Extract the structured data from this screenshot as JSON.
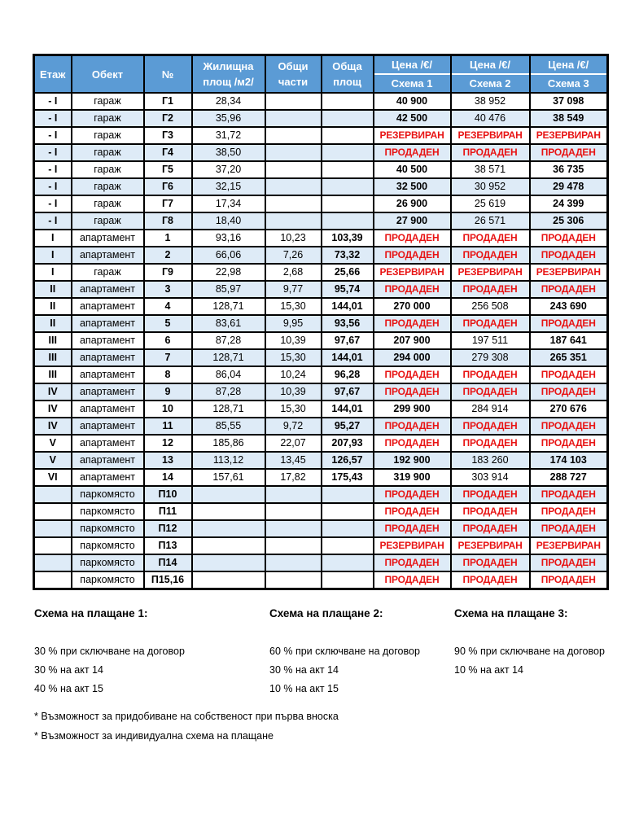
{
  "colors": {
    "header_bg": "#5B9BD5",
    "header_text": "#FFFFFF",
    "stripe_bg": "#DEEBF7",
    "status_red": "#E81414",
    "border": "#000000"
  },
  "status_values": [
    "ПРОДАДЕН",
    "РЕЗЕРВИРАН"
  ],
  "table": {
    "header": {
      "cols": [
        {
          "lines": [
            "Етаж"
          ]
        },
        {
          "lines": [
            "Обект"
          ]
        },
        {
          "lines": [
            "№"
          ]
        },
        {
          "lines": [
            "Жилищна",
            "площ /м2/"
          ]
        },
        {
          "lines": [
            "Общи",
            "части"
          ]
        },
        {
          "lines": [
            "Обща",
            "площ"
          ]
        },
        {
          "split": true,
          "lines": [
            "Цена /€/",
            "Схема 1"
          ]
        },
        {
          "split": true,
          "lines": [
            "Цена /€/",
            "Схема 2"
          ]
        },
        {
          "split": true,
          "lines": [
            "Цена /€/",
            "Схема 3"
          ]
        }
      ]
    },
    "rows": [
      {
        "cells": [
          "- I",
          "гараж",
          "Г1",
          "28,34",
          "",
          "",
          "40 900",
          "38 952",
          "37 098"
        ]
      },
      {
        "cells": [
          "- I",
          "гараж",
          "Г2",
          "35,96",
          "",
          "",
          "42 500",
          "40 476",
          "38 549"
        ]
      },
      {
        "cells": [
          "- I",
          "гараж",
          "Г3",
          "31,72",
          "",
          "",
          "РЕЗЕРВИРАН",
          "РЕЗЕРВИРАН",
          "РЕЗЕРВИРАН"
        ]
      },
      {
        "cells": [
          "- I",
          "гараж",
          "Г4",
          "38,50",
          "",
          "",
          "ПРОДАДЕН",
          "ПРОДАДЕН",
          "ПРОДАДЕН"
        ]
      },
      {
        "cells": [
          "- I",
          "гараж",
          "Г5",
          "37,20",
          "",
          "",
          "40 500",
          "38 571",
          "36 735"
        ]
      },
      {
        "cells": [
          "- I",
          "гараж",
          "Г6",
          "32,15",
          "",
          "",
          "32 500",
          "30 952",
          "29 478"
        ]
      },
      {
        "cells": [
          "- I",
          "гараж",
          "Г7",
          "17,34",
          "",
          "",
          "26 900",
          "25 619",
          "24 399"
        ]
      },
      {
        "cells": [
          "- I",
          "гараж",
          "Г8",
          "18,40",
          "",
          "",
          "27 900",
          "26 571",
          "25 306"
        ]
      },
      {
        "cells": [
          "I",
          "апартамент",
          "1",
          "93,16",
          "10,23",
          "103,39",
          "ПРОДАДЕН",
          "ПРОДАДЕН",
          "ПРОДАДЕН"
        ]
      },
      {
        "cells": [
          "I",
          "апартамент",
          "2",
          "66,06",
          "7,26",
          "73,32",
          "ПРОДАДЕН",
          "ПРОДАДЕН",
          "ПРОДАДЕН"
        ]
      },
      {
        "cells": [
          "I",
          "гараж",
          "Г9",
          "22,98",
          "2,68",
          "25,66",
          "РЕЗЕРВИРАН",
          "РЕЗЕРВИРАН",
          "РЕЗЕРВИРАН"
        ]
      },
      {
        "cells": [
          "II",
          "апартамент",
          "3",
          "85,97",
          "9,77",
          "95,74",
          "ПРОДАДЕН",
          "ПРОДАДЕН",
          "ПРОДАДЕН"
        ]
      },
      {
        "cells": [
          "II",
          "апартамент",
          "4",
          "128,71",
          "15,30",
          "144,01",
          "270 000",
          "256 508",
          "243 690"
        ]
      },
      {
        "cells": [
          "II",
          "апартамент",
          "5",
          "83,61",
          "9,95",
          "93,56",
          "ПРОДАДЕН",
          "ПРОДАДЕН",
          "ПРОДАДЕН"
        ]
      },
      {
        "cells": [
          "III",
          "апартамент",
          "6",
          "87,28",
          "10,39",
          "97,67",
          "207 900",
          "197 511",
          "187 641"
        ]
      },
      {
        "cells": [
          "III",
          "апартамент",
          "7",
          "128,71",
          "15,30",
          "144,01",
          "294 000",
          "279 308",
          "265 351"
        ]
      },
      {
        "cells": [
          "III",
          "апартамент",
          "8",
          "86,04",
          "10,24",
          "96,28",
          "ПРОДАДЕН",
          "ПРОДАДЕН",
          "ПРОДАДЕН"
        ]
      },
      {
        "cells": [
          "IV",
          "апартамент",
          "9",
          "87,28",
          "10,39",
          "97,67",
          "ПРОДАДЕН",
          "ПРОДАДЕН",
          "ПРОДАДЕН"
        ]
      },
      {
        "cells": [
          "IV",
          "апартамент",
          "10",
          "128,71",
          "15,30",
          "144,01",
          "299 900",
          "284 914",
          "270 676"
        ]
      },
      {
        "cells": [
          "IV",
          "апартамент",
          "11",
          "85,55",
          "9,72",
          "95,27",
          "ПРОДАДЕН",
          "ПРОДАДЕН",
          "ПРОДАДЕН"
        ]
      },
      {
        "cells": [
          "V",
          "апартамент",
          "12",
          "185,86",
          "22,07",
          "207,93",
          "ПРОДАДЕН",
          "ПРОДАДЕН",
          "ПРОДАДЕН"
        ]
      },
      {
        "cells": [
          "V",
          "апартамент",
          "13",
          "113,12",
          "13,45",
          "126,57",
          "192 900",
          "183 260",
          "174 103"
        ]
      },
      {
        "cells": [
          "VI",
          "апартамент",
          "14",
          "157,61",
          "17,82",
          "175,43",
          "319 900",
          "303 914",
          "288 727"
        ]
      },
      {
        "cells": [
          "",
          "паркомясто",
          "П10",
          "",
          "",
          "",
          "ПРОДАДЕН",
          "ПРОДАДЕН",
          "ПРОДАДЕН"
        ]
      },
      {
        "cells": [
          "",
          "паркомясто",
          "П11",
          "",
          "",
          "",
          "ПРОДАДЕН",
          "ПРОДАДЕН",
          "ПРОДАДЕН"
        ]
      },
      {
        "cells": [
          "",
          "паркомясто",
          "П12",
          "",
          "",
          "",
          "ПРОДАДЕН",
          "ПРОДАДЕН",
          "ПРОДАДЕН"
        ]
      },
      {
        "cells": [
          "",
          "паркомясто",
          "П13",
          "",
          "",
          "",
          "РЕЗЕРВИРАН",
          "РЕЗЕРВИРАН",
          "РЕЗЕРВИРАН"
        ]
      },
      {
        "cells": [
          "",
          "паркомясто",
          "П14",
          "",
          "",
          "",
          "ПРОДАДЕН",
          "ПРОДАДЕН",
          "ПРОДАДЕН"
        ]
      },
      {
        "cells": [
          "",
          "паркомясто",
          "П15,16",
          "",
          "",
          "",
          "ПРОДАДЕН",
          "ПРОДАДЕН",
          "ПРОДАДЕН"
        ]
      }
    ]
  },
  "schemes": [
    {
      "title": "Схема на плащане 1:",
      "lines": [
        "30 % при сключване на договор",
        "30 % на акт 14",
        "40 % на акт 15"
      ]
    },
    {
      "title": "Схема на плащане 2:",
      "lines": [
        "60 % при сключване на договор",
        "30 % на акт 14",
        "10 % на акт 15"
      ]
    },
    {
      "title": "Схема на плащане 3:",
      "lines": [
        "90 % при сключване на договор",
        "10 % на акт 14"
      ]
    }
  ],
  "footnotes": [
    "* Възможност за придобиване на собственост при първа вноска",
    "* Възможност за индивидуална схема на плащане"
  ]
}
